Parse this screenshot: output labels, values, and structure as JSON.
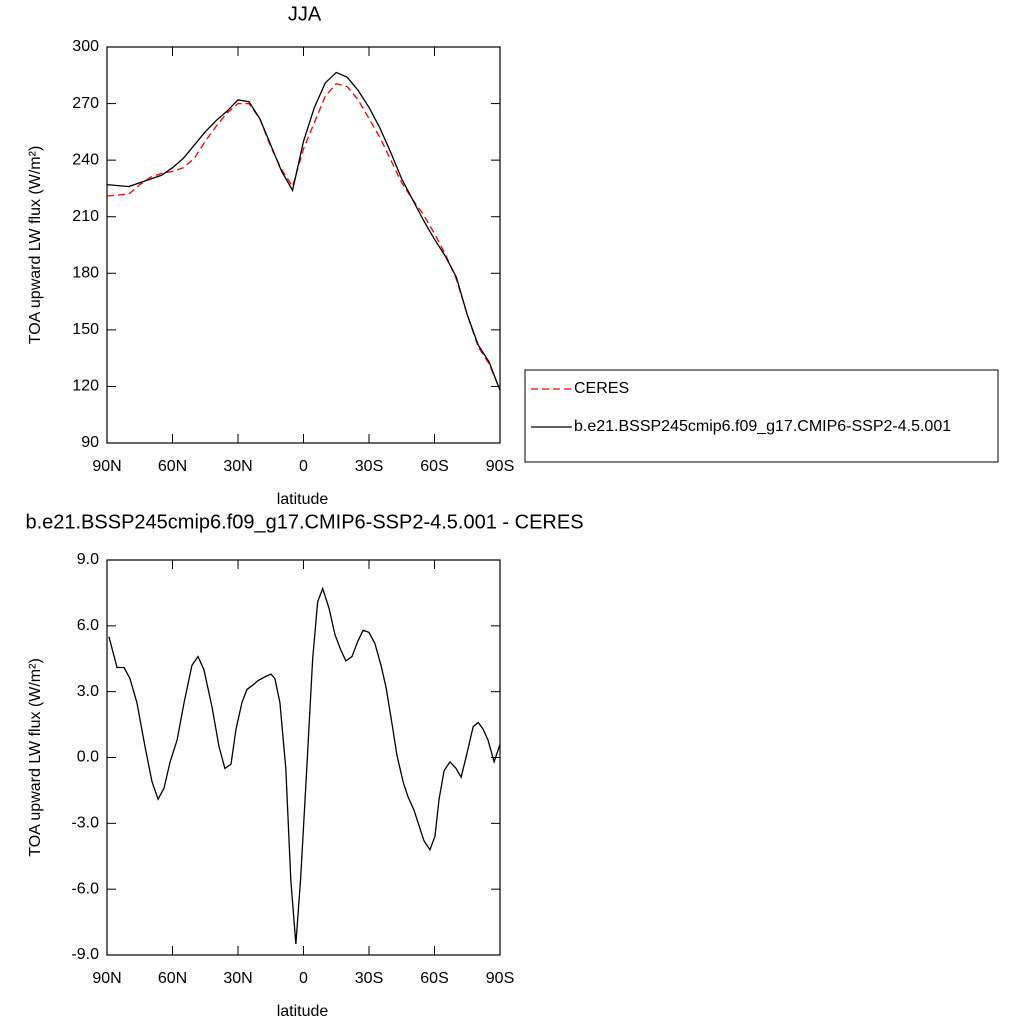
{
  "chart_data": [
    {
      "type": "line",
      "title": "JJA",
      "xlabel": "latitude",
      "ylabel": "TOA upward LW flux (W/m²)",
      "x": [
        90,
        85,
        80,
        75,
        70,
        65,
        60,
        55,
        50,
        45,
        40,
        35,
        30,
        25,
        20,
        15,
        10,
        5,
        0,
        -5,
        -10,
        -15,
        -20,
        -25,
        -30,
        -35,
        -40,
        -45,
        -50,
        -55,
        -60,
        -65,
        -70,
        -75,
        -80,
        -85,
        -90
      ],
      "series": [
        {
          "name": "CERES",
          "color": "#ff0000",
          "dash": true,
          "values": [
            221,
            221.5,
            222,
            227,
            231,
            233,
            234,
            236,
            241,
            250,
            258,
            265,
            270,
            270,
            262,
            247,
            235,
            226,
            246,
            260,
            274,
            280.5,
            279,
            272,
            262,
            252,
            240,
            228,
            219,
            211,
            201,
            190,
            177,
            158,
            141,
            132,
            118
          ]
        },
        {
          "name": "b.e21.BSSP245cmip6.f09_g17.CMIP6-SSP2-4.5.001",
          "color": "#000000",
          "dash": false,
          "values": [
            227,
            226.5,
            226,
            228,
            230,
            232,
            236,
            241,
            248,
            255,
            261,
            266,
            272,
            271,
            262,
            248,
            234,
            224,
            250,
            268,
            281,
            286.5,
            284,
            277,
            268,
            257,
            244,
            230,
            219,
            208,
            198,
            189,
            178,
            158,
            142,
            133,
            118
          ]
        }
      ],
      "xlim": [
        90,
        -90
      ],
      "xticks": [
        {
          "value": 90,
          "label": "90N"
        },
        {
          "value": 60,
          "label": "60N"
        },
        {
          "value": 30,
          "label": "30N"
        },
        0,
        {
          "value": -30,
          "label": "30S"
        },
        {
          "value": -60,
          "label": "60S"
        },
        {
          "value": -90,
          "label": "90S"
        }
      ],
      "ylim": [
        90,
        300
      ],
      "yticks": [
        90,
        120,
        150,
        180,
        210,
        240,
        270,
        300
      ],
      "legend": "right"
    },
    {
      "type": "line",
      "title": "b.e21.BSSP245cmip6.f09_g17.CMIP6-SSP2-4.5.001 - CERES",
      "xlabel": "latitude",
      "ylabel": "TOA upward LW flux (W/m²)",
      "x": [
        89.1,
        85.4,
        82.2,
        79.5,
        76.3,
        72.6,
        69.4,
        66.6,
        63.9,
        61.1,
        57.9,
        54.7,
        51.1,
        48.3,
        45.6,
        41.9,
        38.7,
        36.0,
        33.2,
        30.9,
        28.2,
        25.9,
        23.2,
        20.9,
        17.2,
        14.9,
        13.1,
        10.8,
        8.1,
        5.8,
        3.5,
        1.3,
        -1.5,
        -4.2,
        -6.5,
        -8.8,
        -11.7,
        -14.4,
        -17.1,
        -19.4,
        -22.2,
        -24.9,
        -27.3,
        -30.0,
        -32.7,
        -35.5,
        -37.8,
        -40.6,
        -42.8,
        -45.6,
        -47.9,
        -50.6,
        -52.9,
        -55.2,
        -57.9,
        -60.2,
        -62.1,
        -64.4,
        -67.1,
        -69.9,
        -72.2,
        -74.9,
        -77.7,
        -80.0,
        -82.2,
        -84.5,
        -87.3,
        -90
      ],
      "values": [
        5.5,
        4.1,
        4.1,
        3.6,
        2.5,
        0.5,
        -1.1,
        -1.9,
        -1.4,
        -0.2,
        0.8,
        2.5,
        4.2,
        4.6,
        4.0,
        2.3,
        0.5,
        -0.5,
        -0.3,
        1.3,
        2.5,
        3.1,
        3.3,
        3.5,
        3.7,
        3.8,
        3.6,
        2.5,
        -0.5,
        -5.6,
        -8.5,
        -5.5,
        -0.5,
        4.5,
        7.1,
        7.7,
        6.8,
        5.6,
        4.9,
        4.4,
        4.6,
        5.3,
        5.8,
        5.7,
        5.2,
        4.2,
        3.2,
        1.5,
        0.1,
        -1.1,
        -1.8,
        -2.4,
        -3.1,
        -3.8,
        -4.2,
        -3.6,
        -1.9,
        -0.6,
        -0.2,
        -0.5,
        -0.9,
        0.2,
        1.4,
        1.6,
        1.3,
        0.8,
        -0.2,
        0.6
      ],
      "color": "#000000",
      "xlim": [
        90,
        -90
      ],
      "xticks": [
        {
          "value": 90,
          "label": "90N"
        },
        {
          "value": 60,
          "label": "60N"
        },
        {
          "value": 30,
          "label": "30N"
        },
        0,
        {
          "value": -30,
          "label": "30S"
        },
        {
          "value": -60,
          "label": "60S"
        },
        {
          "value": -90,
          "label": "90S"
        }
      ],
      "ylim": [
        -9,
        9
      ],
      "yticks": [
        {
          "value": -9,
          "label": "-9.0"
        },
        {
          "value": -6,
          "label": "-6.0"
        },
        {
          "value": -3,
          "label": "-3.0"
        },
        {
          "value": 0,
          "label": "0.0"
        },
        {
          "value": 3,
          "label": "3.0"
        },
        {
          "value": 6,
          "label": "6.0"
        },
        {
          "value": 9,
          "label": "9.0"
        }
      ]
    }
  ]
}
